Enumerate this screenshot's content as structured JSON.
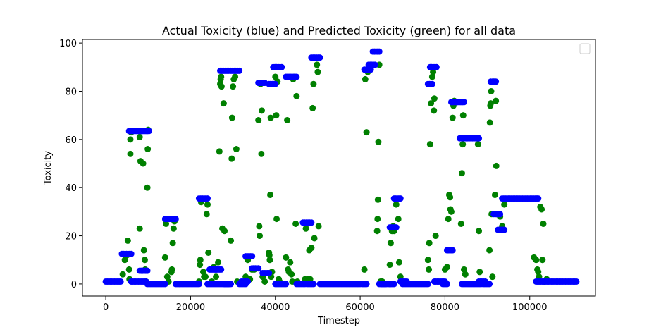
{
  "chart_data": {
    "type": "scatter",
    "title": "Actual Toxicity (blue) and Predicted Toxicity (green) for all data",
    "xlabel": "Timestep",
    "ylabel": "Toxicity",
    "xlim": [
      -5500,
      115500
    ],
    "ylim": [
      -5,
      101.5
    ],
    "xticks": [
      0,
      20000,
      40000,
      60000,
      80000,
      100000
    ],
    "xtick_labels": [
      "0",
      "20000",
      "40000",
      "60000",
      "80000",
      "100000"
    ],
    "yticks": [
      0,
      20,
      40,
      60,
      80,
      100
    ],
    "ytick_labels": [
      "0",
      "20",
      "40",
      "60",
      "80",
      "100"
    ],
    "grid": false,
    "legend": "top-right (empty)",
    "colors": {
      "predicted": "#008000",
      "actual": "#0000ff"
    },
    "series": [
      {
        "color_role": "predicted",
        "points": [
          [
            4000,
            4
          ],
          [
            4500,
            10
          ],
          [
            5000,
            12
          ],
          [
            5200,
            18
          ],
          [
            5500,
            6
          ],
          [
            5600,
            2
          ],
          [
            5800,
            54
          ],
          [
            5800,
            60
          ],
          [
            6000,
            63
          ],
          [
            8000,
            23
          ],
          [
            8000,
            61
          ],
          [
            8200,
            51
          ],
          [
            8800,
            50
          ],
          [
            9000,
            14
          ],
          [
            9200,
            10
          ],
          [
            9300,
            6
          ],
          [
            9500,
            1
          ],
          [
            9800,
            40
          ],
          [
            9900,
            56
          ],
          [
            10000,
            64
          ],
          [
            14000,
            11
          ],
          [
            14200,
            25
          ],
          [
            14500,
            3
          ],
          [
            14800,
            1
          ],
          [
            15500,
            5
          ],
          [
            15600,
            6
          ],
          [
            15800,
            17
          ],
          [
            16000,
            23
          ],
          [
            16200,
            26
          ],
          [
            22000,
            1
          ],
          [
            22200,
            8
          ],
          [
            22300,
            10
          ],
          [
            22500,
            34
          ],
          [
            22800,
            35
          ],
          [
            23000,
            5
          ],
          [
            23200,
            3
          ],
          [
            23500,
            3
          ],
          [
            23800,
            29
          ],
          [
            24000,
            33
          ],
          [
            24200,
            13
          ],
          [
            25000,
            1
          ],
          [
            25500,
            7
          ],
          [
            26000,
            3
          ],
          [
            26500,
            9
          ],
          [
            26800,
            55
          ],
          [
            27000,
            83
          ],
          [
            27100,
            85
          ],
          [
            27200,
            86
          ],
          [
            27300,
            82
          ],
          [
            27500,
            23
          ],
          [
            27800,
            75
          ],
          [
            28000,
            22
          ],
          [
            29500,
            18
          ],
          [
            29700,
            52
          ],
          [
            29800,
            69
          ],
          [
            30000,
            82
          ],
          [
            30200,
            85
          ],
          [
            30500,
            86
          ],
          [
            30800,
            56
          ],
          [
            31000,
            1
          ],
          [
            33000,
            3
          ],
          [
            33200,
            11
          ],
          [
            33500,
            10
          ],
          [
            34000,
            2
          ],
          [
            34500,
            6
          ],
          [
            35000,
            6
          ],
          [
            36000,
            68
          ],
          [
            36200,
            24
          ],
          [
            36300,
            20
          ],
          [
            36500,
            83
          ],
          [
            36700,
            54
          ],
          [
            36800,
            72
          ],
          [
            37000,
            3
          ],
          [
            37500,
            1
          ],
          [
            38500,
            13
          ],
          [
            38600,
            12
          ],
          [
            38700,
            10
          ],
          [
            38800,
            37
          ],
          [
            38900,
            69
          ],
          [
            39000,
            3
          ],
          [
            39200,
            5
          ],
          [
            40000,
            86
          ],
          [
            40200,
            70
          ],
          [
            40300,
            27
          ],
          [
            40500,
            84
          ],
          [
            40800,
            2
          ],
          [
            41000,
            1
          ],
          [
            42500,
            11
          ],
          [
            42800,
            68
          ],
          [
            43000,
            6
          ],
          [
            43200,
            5
          ],
          [
            43500,
            9
          ],
          [
            43800,
            4
          ],
          [
            44000,
            1
          ],
          [
            44200,
            85
          ],
          [
            44500,
            86
          ],
          [
            44800,
            25
          ],
          [
            45000,
            78
          ],
          [
            45200,
            1
          ],
          [
            47000,
            2
          ],
          [
            47200,
            23
          ],
          [
            47500,
            25
          ],
          [
            47800,
            2
          ],
          [
            48000,
            14
          ],
          [
            48200,
            2
          ],
          [
            48500,
            15
          ],
          [
            48800,
            73
          ],
          [
            49000,
            83
          ],
          [
            49200,
            19
          ],
          [
            49800,
            91
          ],
          [
            50000,
            88
          ],
          [
            50200,
            24
          ],
          [
            61000,
            6
          ],
          [
            61200,
            85
          ],
          [
            61500,
            63
          ],
          [
            61800,
            88
          ],
          [
            62000,
            89
          ],
          [
            64000,
            22
          ],
          [
            64100,
            27
          ],
          [
            64200,
            35
          ],
          [
            64300,
            59
          ],
          [
            64500,
            91
          ],
          [
            64800,
            1
          ],
          [
            65000,
            1
          ],
          [
            65200,
            1
          ],
          [
            67000,
            8
          ],
          [
            67200,
            17
          ],
          [
            67500,
            22
          ],
          [
            67800,
            24
          ],
          [
            68000,
            22
          ],
          [
            68500,
            33
          ],
          [
            69000,
            27
          ],
          [
            69200,
            9
          ],
          [
            69500,
            3
          ],
          [
            70000,
            1
          ],
          [
            76000,
            10
          ],
          [
            76200,
            6
          ],
          [
            76300,
            17
          ],
          [
            76500,
            58
          ],
          [
            76700,
            75
          ],
          [
            77000,
            86
          ],
          [
            77200,
            88
          ],
          [
            77400,
            72
          ],
          [
            77500,
            77
          ],
          [
            77800,
            20
          ],
          [
            80000,
            6
          ],
          [
            80500,
            7
          ],
          [
            80800,
            27
          ],
          [
            81000,
            37
          ],
          [
            81200,
            36
          ],
          [
            81300,
            31
          ],
          [
            81500,
            30
          ],
          [
            81800,
            69
          ],
          [
            82000,
            74
          ],
          [
            82200,
            76
          ],
          [
            83800,
            25
          ],
          [
            84000,
            46
          ],
          [
            84200,
            58
          ],
          [
            84300,
            70
          ],
          [
            84500,
            6
          ],
          [
            84800,
            4
          ],
          [
            87800,
            58
          ],
          [
            88000,
            22
          ],
          [
            88200,
            5
          ],
          [
            88500,
            1
          ],
          [
            90500,
            14
          ],
          [
            90600,
            67
          ],
          [
            90700,
            74
          ],
          [
            90800,
            75
          ],
          [
            90900,
            80
          ],
          [
            91000,
            29
          ],
          [
            91200,
            3
          ],
          [
            91500,
            84
          ],
          [
            91800,
            37
          ],
          [
            92000,
            76
          ],
          [
            92100,
            49
          ],
          [
            92200,
            29
          ],
          [
            93000,
            28
          ],
          [
            93500,
            24
          ],
          [
            94000,
            33
          ],
          [
            101000,
            11
          ],
          [
            101500,
            10
          ],
          [
            101800,
            6
          ],
          [
            102000,
            5
          ],
          [
            102200,
            3
          ],
          [
            102500,
            32
          ],
          [
            102800,
            31
          ],
          [
            103000,
            10
          ],
          [
            103200,
            25
          ],
          [
            103500,
            1
          ],
          [
            104000,
            2
          ]
        ]
      },
      {
        "color_role": "actual",
        "segments": [
          [
            0,
            3500,
            1
          ],
          [
            3800,
            6000,
            12.5
          ],
          [
            5500,
            10200,
            63.5
          ],
          [
            6000,
            9500,
            1
          ],
          [
            8000,
            9800,
            5.5
          ],
          [
            9800,
            14000,
            0
          ],
          [
            14000,
            16500,
            27
          ],
          [
            16500,
            22000,
            0
          ],
          [
            22000,
            24000,
            35.5
          ],
          [
            24000,
            29000,
            0
          ],
          [
            24500,
            26000,
            6
          ],
          [
            26000,
            27200,
            6
          ],
          [
            27000,
            29000,
            88.5
          ],
          [
            28000,
            29500,
            0
          ],
          [
            29500,
            31500,
            88.5
          ],
          [
            31500,
            33000,
            0
          ],
          [
            32000,
            33500,
            1
          ],
          [
            33000,
            34500,
            11.5
          ],
          [
            34500,
            36000,
            6.5
          ],
          [
            36000,
            37500,
            83.5
          ],
          [
            37000,
            38500,
            4.5
          ],
          [
            38500,
            40000,
            83
          ],
          [
            39500,
            41500,
            90
          ],
          [
            40000,
            42500,
            0
          ],
          [
            42500,
            45000,
            86
          ],
          [
            45000,
            47000,
            0
          ],
          [
            46500,
            48500,
            25.5
          ],
          [
            47500,
            49000,
            0
          ],
          [
            48500,
            50500,
            94
          ],
          [
            50500,
            60000,
            0
          ],
          [
            60500,
            61500,
            0
          ],
          [
            61000,
            62500,
            89
          ],
          [
            62000,
            63500,
            91
          ],
          [
            63000,
            64500,
            96.5
          ],
          [
            64500,
            66000,
            0
          ],
          [
            65000,
            67000,
            0
          ],
          [
            67000,
            68000,
            0
          ],
          [
            67000,
            68500,
            23.5
          ],
          [
            68000,
            69500,
            35.5
          ],
          [
            69500,
            71000,
            1
          ],
          [
            70000,
            76000,
            0
          ],
          [
            76000,
            77000,
            83
          ],
          [
            76500,
            78000,
            90
          ],
          [
            77500,
            80000,
            1
          ],
          [
            79500,
            80500,
            0
          ],
          [
            80500,
            81800,
            14
          ],
          [
            81500,
            84500,
            75.5
          ],
          [
            83500,
            88000,
            60.5
          ],
          [
            84000,
            88500,
            0
          ],
          [
            88000,
            89500,
            1
          ],
          [
            89000,
            90500,
            0
          ],
          [
            90800,
            92000,
            84
          ],
          [
            91500,
            93000,
            29
          ],
          [
            92500,
            94000,
            22.5
          ],
          [
            93500,
            102000,
            35.5
          ],
          [
            101500,
            111000,
            1
          ]
        ]
      }
    ]
  }
}
